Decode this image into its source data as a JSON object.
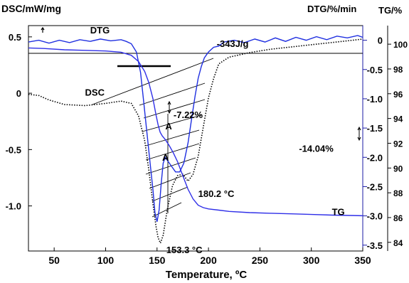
{
  "chart_data": {
    "type": "line",
    "title": "",
    "xlabel": "Temperature, ºC",
    "ylabel_left": "DSC/mW/mg",
    "ylabel_right1": "DTG/%/min",
    "ylabel_right2": "TG/%",
    "xlim": [
      25,
      350
    ],
    "ylim_left": [
      -1.4,
      0.6
    ],
    "ylim_right1": [
      -3.6,
      0.25
    ],
    "ylim_right2": [
      83.3,
      101.5
    ],
    "x_ticks": [
      "50",
      "100",
      "150",
      "200",
      "250",
      "300",
      "350"
    ],
    "x_tick_values": [
      50,
      100,
      150,
      200,
      250,
      300,
      350
    ],
    "y_left_ticks": [
      "0.5",
      "0",
      "-0.5",
      "-1.0"
    ],
    "y_left_tick_values": [
      0.5,
      0,
      -0.5,
      -1.0
    ],
    "y_right1_ticks": [
      "0",
      "-0.5",
      "-1.0",
      "-1.5",
      "-2.0",
      "-2.5",
      "-3.0",
      "-3.5"
    ],
    "y_right1_tick_values": [
      0,
      -0.5,
      -1.0,
      -1.5,
      -2.0,
      -2.5,
      -3.0,
      -3.5
    ],
    "y_right2_ticks": [
      "100",
      "98",
      "96",
      "94",
      "92",
      "90",
      "88",
      "86",
      "84"
    ],
    "y_right2_tick_values": [
      100,
      98,
      96,
      94,
      92,
      90,
      88,
      86,
      84
    ],
    "series": [
      {
        "name": "DSC",
        "color": "#000000",
        "style": "dotted",
        "axis": "left",
        "x": [
          25,
          35,
          45,
          60,
          80,
          100,
          115,
          125,
          132,
          138,
          142,
          146,
          149,
          151,
          153.3,
          156,
          160,
          165,
          170,
          175,
          180.2,
          185,
          190,
          195,
          200,
          205,
          210,
          220,
          240,
          260,
          280,
          300,
          320,
          350
        ],
        "y": [
          -0.01,
          -0.02,
          -0.06,
          -0.1,
          -0.11,
          -0.09,
          -0.07,
          -0.09,
          -0.2,
          -0.42,
          -0.68,
          -0.98,
          -1.18,
          -1.28,
          -1.33,
          -1.26,
          -1.03,
          -0.82,
          -0.73,
          -0.72,
          -0.78,
          -0.72,
          -0.56,
          -0.3,
          -0.04,
          0.13,
          0.26,
          0.32,
          0.36,
          0.39,
          0.41,
          0.43,
          0.45,
          0.48
        ]
      },
      {
        "name": "DTG",
        "color": "#1f2fe0",
        "style": "solid",
        "axis": "right1",
        "x": [
          25,
          35,
          45,
          55,
          65,
          75,
          85,
          95,
          105,
          115,
          120,
          125,
          130,
          134,
          137,
          140,
          143,
          146,
          148,
          150,
          152,
          154,
          156,
          158,
          160,
          164,
          168,
          172,
          176,
          180.2,
          184,
          187,
          190,
          193,
          196,
          200,
          205,
          210,
          215,
          225,
          235,
          245,
          255,
          265,
          275,
          285,
          295,
          305,
          315,
          325,
          335,
          345,
          350
        ],
        "y": [
          -0.03,
          0.0,
          -0.05,
          0.0,
          -0.04,
          0.01,
          -0.02,
          0.02,
          -0.01,
          0.01,
          -0.02,
          -0.06,
          -0.2,
          -0.55,
          -1.05,
          -1.55,
          -2.05,
          -2.55,
          -2.95,
          -3.1,
          -2.9,
          -2.45,
          -2.1,
          -2.0,
          -2.05,
          -2.15,
          -2.25,
          -2.25,
          -2.1,
          -1.75,
          -1.3,
          -0.95,
          -0.65,
          -0.45,
          -0.3,
          -0.2,
          -0.12,
          -0.1,
          -0.03,
          0.0,
          -0.04,
          0.02,
          -0.03,
          0.04,
          -0.02,
          0.05,
          0.0,
          0.06,
          0.01,
          0.07,
          0.04,
          0.08,
          0.05
        ]
      },
      {
        "name": "TG",
        "color": "#2f2fe8",
        "style": "solid",
        "axis": "right2",
        "x": [
          25,
          40,
          60,
          80,
          100,
          115,
          125,
          132,
          138,
          142,
          146,
          149,
          151,
          153,
          155,
          158,
          162,
          166,
          170,
          175,
          180,
          185,
          190,
          195,
          200,
          210,
          220,
          240,
          260,
          280,
          300,
          320,
          350
        ],
        "y": [
          99.7,
          99.65,
          99.55,
          99.5,
          99.45,
          99.35,
          99.1,
          98.6,
          97.8,
          96.9,
          95.6,
          94.3,
          93.5,
          92.9,
          92.6,
          92.3,
          91.8,
          91.2,
          90.5,
          89.4,
          88.3,
          87.5,
          87.0,
          86.8,
          86.7,
          86.6,
          86.5,
          86.4,
          86.35,
          86.3,
          86.25,
          86.2,
          86.15
        ]
      }
    ],
    "annotations": [
      {
        "text": "DTG",
        "x": 85,
        "y_left": 0.53
      },
      {
        "text": "DSC",
        "x": 80,
        "y_left": -0.02
      },
      {
        "text": "TG",
        "x": 320,
        "y_left": -1.08
      },
      {
        "text": "-343J/g",
        "x": 208,
        "y_left": 0.41
      },
      {
        "text": "-7.22%",
        "x": 166,
        "y_left": -0.22
      },
      {
        "text": "A",
        "x": 158,
        "y_left": -0.32
      },
      {
        "text": "A",
        "x": 155,
        "y_left": -0.6
      },
      {
        "text": "-14.04%",
        "x": 288,
        "y_left": -0.52
      },
      {
        "text": "180.2 °C",
        "x": 190,
        "y_left": -0.92
      },
      {
        "text": "153.3 °C",
        "x": 159,
        "y_left": -1.42
      }
    ],
    "grid": false,
    "legend": "none"
  }
}
